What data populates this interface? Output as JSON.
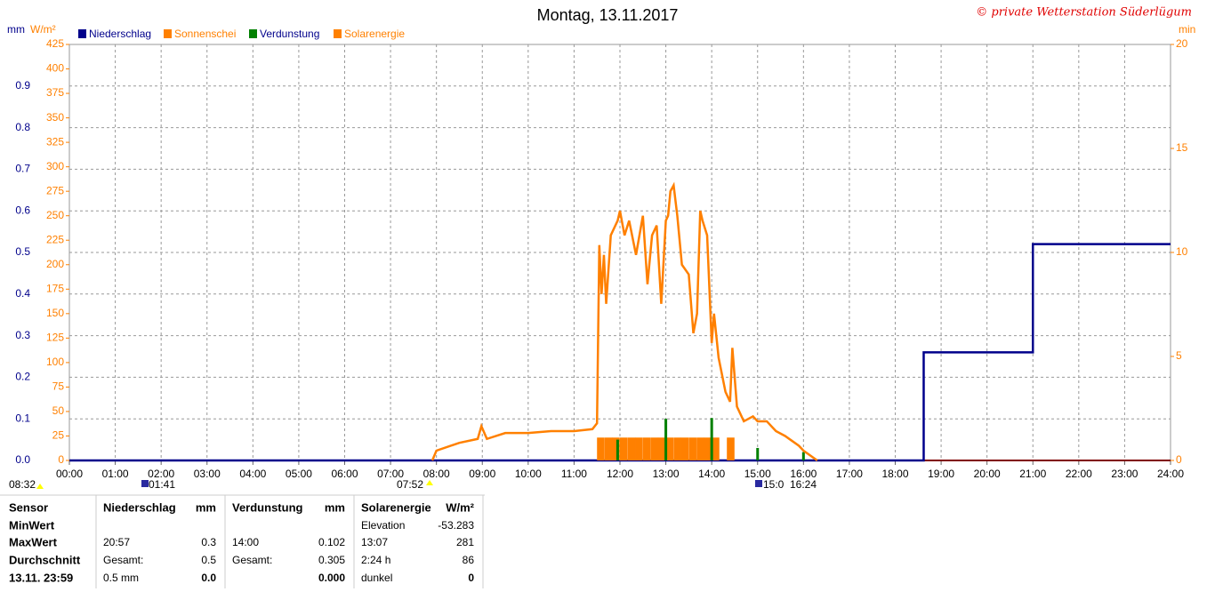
{
  "chart_data": {
    "type": "combo",
    "title": "Montag, 13.11.2017",
    "copyright": "© private Wetterstation Süderlügum",
    "y_unit": "mm",
    "w_unit": "W/m²",
    "y2_unit": "min",
    "xlim": [
      0,
      24
    ],
    "xticks": [
      {
        "value": 0,
        "label": "00:00"
      },
      {
        "value": 1,
        "label": "01:00"
      },
      {
        "value": 2,
        "label": "02:00"
      },
      {
        "value": 3,
        "label": "03:00"
      },
      {
        "value": 4,
        "label": "04:00"
      },
      {
        "value": 5,
        "label": "05:00"
      },
      {
        "value": 6,
        "label": "06:00"
      },
      {
        "value": 7,
        "label": "07:00"
      },
      {
        "value": 8,
        "label": "08:00"
      },
      {
        "value": 9,
        "label": "09:00"
      },
      {
        "value": 10,
        "label": "10:00"
      },
      {
        "value": 11,
        "label": "11:00"
      },
      {
        "value": 12,
        "label": "12:00"
      },
      {
        "value": 13,
        "label": "13:00"
      },
      {
        "value": 14,
        "label": "14:00"
      },
      {
        "value": 15,
        "label": "15:00"
      },
      {
        "value": 16,
        "label": "16:00"
      },
      {
        "value": 17,
        "label": "17:00"
      },
      {
        "value": 18,
        "label": "18:00"
      },
      {
        "value": 19,
        "label": "19:00"
      },
      {
        "value": 20,
        "label": "20:00"
      },
      {
        "value": 21,
        "label": "21:00"
      },
      {
        "value": 22,
        "label": "22:00"
      },
      {
        "value": 23,
        "label": "23:00"
      },
      {
        "value": 24,
        "label": "24:00"
      }
    ],
    "ylim": [
      0,
      1
    ],
    "yticks": [
      {
        "value": 0,
        "label": "0.0"
      },
      0.1,
      0.2,
      0.3,
      0.4,
      0.5,
      0.6,
      0.7,
      0.8,
      0.9
    ],
    "wlim": [
      0,
      425
    ],
    "wticks": [
      0,
      25,
      50,
      75,
      100,
      125,
      150,
      175,
      200,
      225,
      250,
      275,
      300,
      325,
      350,
      375,
      400,
      425
    ],
    "y2lim": [
      0,
      20
    ],
    "y2ticks": [
      0,
      5,
      10,
      15,
      20
    ],
    "grid": true,
    "series": [
      {
        "name": "Niederschlag",
        "color": "#00008b",
        "type": "line",
        "axis": "y",
        "x": [
          0,
          18.62,
          18.62,
          21.0,
          21.0,
          24
        ],
        "values": [
          0,
          0,
          0.26,
          0.26,
          0.52,
          0.52
        ]
      },
      {
        "name": "Sonnenschei",
        "color": "#ff8000",
        "type": "bar",
        "axis": "y2",
        "x": [
          11.5,
          11.67,
          11.83,
          12.0,
          12.17,
          12.33,
          12.5,
          12.67,
          12.83,
          13.0,
          13.17,
          13.33,
          13.5,
          13.67,
          13.83,
          14.0,
          14.33
        ],
        "values": [
          1.1,
          1.1,
          1.1,
          1.1,
          1.1,
          1.1,
          1.1,
          1.1,
          1.1,
          1.1,
          1.1,
          1.1,
          1.1,
          1.1,
          1.1,
          1.1,
          1.1
        ]
      },
      {
        "name": "Verdunstung",
        "color": "#008000",
        "type": "spike",
        "axis": "y",
        "x": [
          11.95,
          13.0,
          14.0,
          15.0,
          16.0
        ],
        "values": [
          0.05,
          0.1,
          0.102,
          0.03,
          0.02
        ]
      },
      {
        "name": "Solarenergie",
        "color": "#ff8000",
        "type": "line",
        "axis": "w",
        "x": [
          7.91,
          8.0,
          8.5,
          8.9,
          8.98,
          9.1,
          9.3,
          9.5,
          10.0,
          10.5,
          11.0,
          11.4,
          11.5,
          11.55,
          11.6,
          11.65,
          11.7,
          11.8,
          11.95,
          12.0,
          12.1,
          12.2,
          12.35,
          12.5,
          12.6,
          12.7,
          12.8,
          12.85,
          12.9,
          13.0,
          13.05,
          13.1,
          13.17,
          13.25,
          13.35,
          13.5,
          13.6,
          13.68,
          13.75,
          13.8,
          13.9,
          14.0,
          14.05,
          14.15,
          14.3,
          14.4,
          14.45,
          14.5,
          14.55,
          14.7,
          14.9,
          15.0,
          15.2,
          15.4,
          15.6,
          15.9,
          16.0,
          16.3
        ],
        "values": [
          0,
          10,
          18,
          22,
          35,
          22,
          25,
          28,
          28,
          30,
          30,
          32,
          38,
          220,
          170,
          210,
          160,
          230,
          245,
          255,
          230,
          245,
          210,
          250,
          180,
          230,
          240,
          200,
          160,
          245,
          250,
          275,
          281,
          250,
          200,
          190,
          130,
          150,
          255,
          245,
          230,
          120,
          150,
          105,
          70,
          60,
          115,
          85,
          55,
          40,
          45,
          40,
          40,
          30,
          25,
          15,
          10,
          0
        ]
      }
    ]
  },
  "time_markers": [
    "08:32",
    "01:41",
    "07:52",
    "15:0",
    "16:24"
  ],
  "stats": {
    "rows": [
      [
        "Sensor",
        "Niederschlag",
        "mm",
        "Verdunstung",
        "mm",
        "Solarenergie",
        "W/m²"
      ],
      [
        "MinWert",
        null,
        null,
        null,
        null,
        "Elevation",
        "-53.283"
      ],
      [
        "MaxWert",
        "20:57",
        "0.3",
        "14:00",
        "0.102",
        "13:07",
        "281"
      ],
      [
        "Durchschnitt",
        "Gesamt:",
        "0.5",
        "Gesamt:",
        "0.305",
        "2:24 h",
        "86"
      ],
      [
        "13.11. 23:59",
        "0.5 mm",
        "0.0",
        null,
        "0.000",
        "dunkel",
        "0"
      ]
    ]
  }
}
